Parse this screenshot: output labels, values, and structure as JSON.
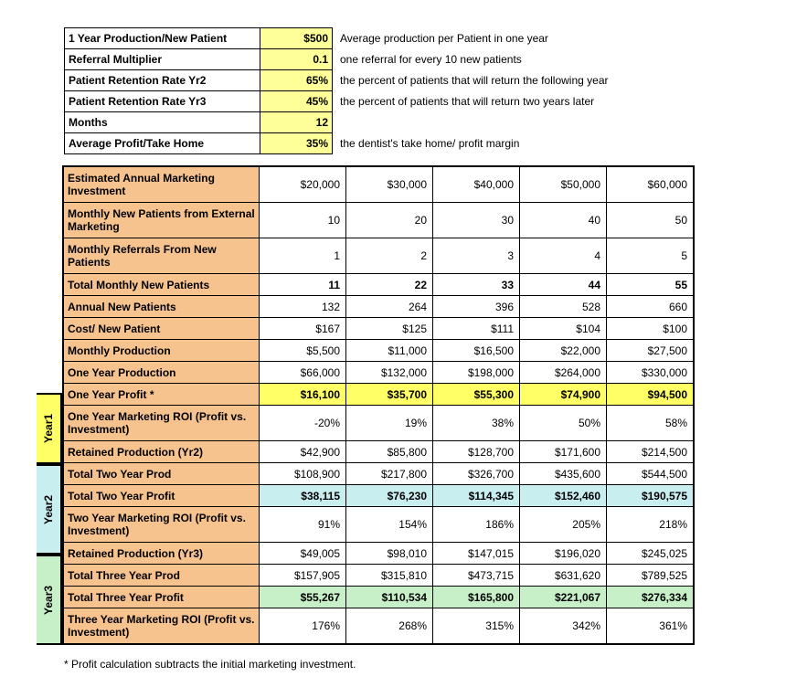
{
  "params": [
    {
      "label": "1 Year Production/New Patient",
      "value": "$500",
      "note": "Average production per Patient in one year"
    },
    {
      "label": "Referral Multiplier",
      "value": "0.1",
      "note": "one referral for every 10 new patients"
    },
    {
      "label": "Patient Retention Rate Yr2",
      "value": "65%",
      "note": "the percent of patients that will return the following year"
    },
    {
      "label": "Patient Retention Rate Yr3",
      "value": "45%",
      "note": "the percent of patients that will return two years later"
    },
    {
      "label": "Months",
      "value": "12",
      "note": ""
    },
    {
      "label": "Average Profit/Take Home",
      "value": "35%",
      "note": "the dentist's take home/ profit margin"
    }
  ],
  "year_tabs": [
    {
      "label": "Year1",
      "bg": "#ffff66",
      "rows": 3
    },
    {
      "label": "Year2",
      "bg": "#c9eef0",
      "rows": 4
    },
    {
      "label": "Year3",
      "bg": "#c8f0c8",
      "rows": 4
    }
  ],
  "pre_rows_count": 8,
  "rows": [
    {
      "label": "Estimated Annual Marketing Investment",
      "label_bg": "orange",
      "cell_bg": "white",
      "bold": false,
      "tall": true,
      "cells": [
        "$20,000",
        "$30,000",
        "$40,000",
        "$50,000",
        "$60,000"
      ]
    },
    {
      "label": "Monthly New Patients from External Marketing",
      "label_bg": "orange",
      "cell_bg": "white",
      "bold": false,
      "tall": true,
      "cells": [
        "10",
        "20",
        "30",
        "40",
        "50"
      ]
    },
    {
      "label": "Monthly Referrals From New Patients",
      "label_bg": "orange",
      "cell_bg": "white",
      "bold": false,
      "tall": true,
      "cells": [
        "1",
        "2",
        "3",
        "4",
        "5"
      ]
    },
    {
      "label": "Total Monthly New Patients",
      "label_bg": "orange",
      "cell_bg": "white",
      "bold": true,
      "cells": [
        "11",
        "22",
        "33",
        "44",
        "55"
      ]
    },
    {
      "label": "Annual New Patients",
      "label_bg": "orange",
      "cell_bg": "white",
      "bold": false,
      "cells": [
        "132",
        "264",
        "396",
        "528",
        "660"
      ]
    },
    {
      "label": "Cost/ New Patient",
      "label_bg": "orange",
      "cell_bg": "white",
      "bold": false,
      "cells": [
        "$167",
        "$125",
        "$111",
        "$104",
        "$100"
      ]
    },
    {
      "label": "Monthly Production",
      "label_bg": "orange",
      "cell_bg": "white",
      "bold": false,
      "cells": [
        "$5,500",
        "$11,000",
        "$16,500",
        "$22,000",
        "$27,500"
      ]
    },
    {
      "label": "One Year Production",
      "label_bg": "orange",
      "cell_bg": "white",
      "bold": false,
      "cells": [
        "$66,000",
        "$132,000",
        "$198,000",
        "$264,000",
        "$330,000"
      ]
    },
    {
      "label": "One Year Profit *",
      "label_bg": "orange",
      "cell_bg": "yellow",
      "bold": true,
      "cells": [
        "$16,100",
        "$35,700",
        "$55,300",
        "$74,900",
        "$94,500"
      ]
    },
    {
      "label": "One Year Marketing ROI (Profit vs. Investment)",
      "label_bg": "orange",
      "cell_bg": "white",
      "bold": false,
      "tall": true,
      "cells": [
        "-20%",
        "19%",
        "38%",
        "50%",
        "58%"
      ]
    },
    {
      "label": "Retained Production (Yr2)",
      "label_bg": "orange",
      "cell_bg": "white",
      "bold": false,
      "cells": [
        "$42,900",
        "$85,800",
        "$128,700",
        "$171,600",
        "$214,500"
      ]
    },
    {
      "label": "Total Two Year Prod",
      "label_bg": "orange",
      "cell_bg": "white",
      "bold": false,
      "cells": [
        "$108,900",
        "$217,800",
        "$326,700",
        "$435,600",
        "$544,500"
      ]
    },
    {
      "label": "Total Two Year Profit",
      "label_bg": "orange",
      "cell_bg": "cyan",
      "bold": true,
      "cells": [
        "$38,115",
        "$76,230",
        "$114,345",
        "$152,460",
        "$190,575"
      ]
    },
    {
      "label": "Two Year Marketing ROI (Profit vs. Investment)",
      "label_bg": "orange",
      "cell_bg": "white",
      "bold": false,
      "tall": true,
      "cells": [
        "91%",
        "154%",
        "186%",
        "205%",
        "218%"
      ]
    },
    {
      "label": "Retained Production (Yr3)",
      "label_bg": "orange",
      "cell_bg": "white",
      "bold": false,
      "cells": [
        "$49,005",
        "$98,010",
        "$147,015",
        "$196,020",
        "$245,025"
      ]
    },
    {
      "label": "Total Three Year Prod",
      "label_bg": "orange",
      "cell_bg": "white",
      "bold": false,
      "cells": [
        "$157,905",
        "$315,810",
        "$473,715",
        "$631,620",
        "$789,525"
      ]
    },
    {
      "label": "Total Three Year Profit",
      "label_bg": "orange",
      "cell_bg": "green",
      "bold": true,
      "cells": [
        "$55,267",
        "$110,534",
        "$165,800",
        "$221,067",
        "$276,334"
      ]
    },
    {
      "label": "Three Year Marketing ROI (Profit vs. Investment)",
      "label_bg": "orange",
      "cell_bg": "white",
      "bold": false,
      "tall": true,
      "cells": [
        "176%",
        "268%",
        "315%",
        "342%",
        "361%"
      ]
    }
  ],
  "footnote": "* Profit calculation subtracts the initial marketing investment."
}
